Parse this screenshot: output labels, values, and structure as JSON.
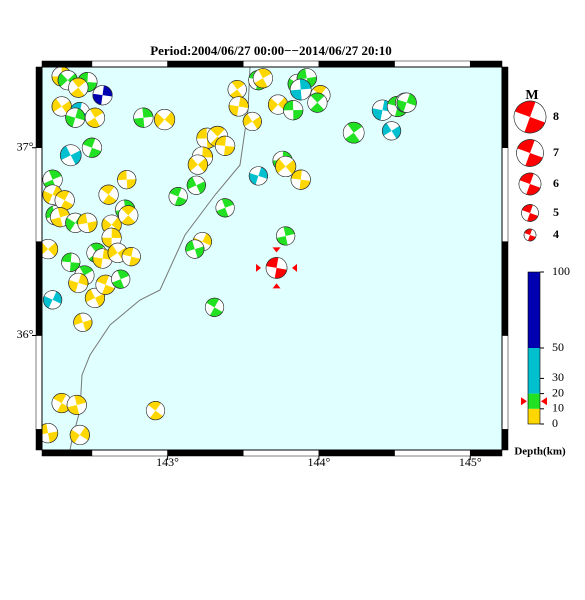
{
  "title": "Period:2004/06/27 00:00−−2014/06/27 20:10",
  "map": {
    "xlim": [
      142.17,
      145.21
    ],
    "ylim": [
      35.39,
      37.43
    ],
    "xticks": [
      {
        "value": 143,
        "label": "143°"
      },
      {
        "value": 144,
        "label": "144°"
      },
      {
        "value": 145,
        "label": "145°"
      }
    ],
    "yticks": [
      {
        "value": 36,
        "label": "36°"
      },
      {
        "value": 37,
        "label": "37°"
      }
    ],
    "background": "#e0ffff"
  },
  "events": [
    [
      142.3,
      37.38,
      5,
      5.5
    ],
    [
      142.34,
      37.36,
      15,
      5.5
    ],
    [
      142.47,
      37.35,
      15,
      5.5
    ],
    [
      142.41,
      37.32,
      5,
      5.5
    ],
    [
      142.57,
      37.28,
      70,
      5.5
    ],
    [
      142.3,
      37.22,
      5,
      5.5
    ],
    [
      142.42,
      37.19,
      35,
      5.5
    ],
    [
      142.52,
      37.16,
      5,
      5.5
    ],
    [
      142.39,
      37.16,
      15,
      5.5
    ],
    [
      142.36,
      36.96,
      45,
      5.8
    ],
    [
      142.5,
      37.0,
      15,
      5.5
    ],
    [
      142.24,
      36.83,
      15,
      5.5
    ],
    [
      142.24,
      36.75,
      5,
      5.5
    ],
    [
      142.26,
      36.64,
      15,
      5.5
    ],
    [
      142.32,
      36.72,
      5,
      5.5
    ],
    [
      142.29,
      36.63,
      5,
      5.5
    ],
    [
      142.39,
      36.6,
      15,
      5.5
    ],
    [
      142.47,
      36.6,
      5,
      5.5
    ],
    [
      142.61,
      36.75,
      5,
      5.5
    ],
    [
      142.72,
      36.67,
      15,
      5.5
    ],
    [
      142.63,
      36.59,
      5,
      5.5
    ],
    [
      142.73,
      36.83,
      5,
      5.3
    ],
    [
      142.74,
      36.64,
      5,
      5.5
    ],
    [
      142.63,
      36.52,
      5,
      5.5
    ],
    [
      142.21,
      36.46,
      5,
      5.5
    ],
    [
      142.36,
      36.39,
      15,
      5.3
    ],
    [
      142.53,
      36.44,
      15,
      5.5
    ],
    [
      142.57,
      36.41,
      5,
      5.5
    ],
    [
      142.67,
      36.44,
      5,
      5.5
    ],
    [
      142.76,
      36.42,
      5,
      5.3
    ],
    [
      142.45,
      36.32,
      15,
      5.5
    ],
    [
      142.41,
      36.28,
      5,
      5.5
    ],
    [
      142.52,
      36.2,
      5,
      5.5
    ],
    [
      142.59,
      36.27,
      5,
      5.5
    ],
    [
      142.69,
      36.3,
      15,
      5.3
    ],
    [
      142.24,
      36.19,
      35,
      5.3
    ],
    [
      142.44,
      36.07,
      5,
      5.3
    ],
    [
      142.3,
      35.64,
      5,
      5.5
    ],
    [
      142.4,
      35.63,
      5,
      5.5
    ],
    [
      142.42,
      35.47,
      5,
      5.5
    ],
    [
      142.21,
      35.48,
      5,
      5.5
    ],
    [
      142.92,
      35.6,
      5,
      5.3
    ],
    [
      142.84,
      37.16,
      15,
      5.5
    ],
    [
      142.98,
      37.15,
      5,
      5.7
    ],
    [
      143.26,
      37.05,
      5,
      5.7
    ],
    [
      143.33,
      37.06,
      5,
      5.7
    ],
    [
      143.23,
      36.95,
      5,
      5.7
    ],
    [
      143.2,
      36.91,
      5,
      5.5
    ],
    [
      143.38,
      37.01,
      5,
      5.5
    ],
    [
      143.46,
      37.31,
      5,
      5.3
    ],
    [
      143.47,
      37.22,
      5,
      5.5
    ],
    [
      143.56,
      37.14,
      5,
      5.3
    ],
    [
      143.6,
      37.36,
      15,
      5.5
    ],
    [
      143.63,
      37.37,
      5,
      5.5
    ],
    [
      143.6,
      36.85,
      35,
      5.3
    ],
    [
      143.19,
      36.8,
      15,
      5.3
    ],
    [
      143.07,
      36.74,
      15,
      5.3
    ],
    [
      143.38,
      36.68,
      15,
      5.3
    ],
    [
      143.23,
      36.5,
      5,
      5.3
    ],
    [
      143.18,
      36.46,
      15,
      5.3
    ],
    [
      143.31,
      36.15,
      15,
      5.3
    ],
    [
      143.78,
      36.53,
      15,
      5.3
    ],
    [
      143.86,
      37.34,
      15,
      5.5
    ],
    [
      143.92,
      37.37,
      15,
      5.5
    ],
    [
      144.01,
      37.28,
      5,
      5.5
    ],
    [
      143.88,
      37.31,
      35,
      5.8
    ],
    [
      143.73,
      37.23,
      5,
      5.5
    ],
    [
      143.83,
      37.2,
      15,
      5.5
    ],
    [
      143.99,
      37.24,
      15,
      5.5
    ],
    [
      143.76,
      36.93,
      15,
      5.5
    ],
    [
      143.78,
      36.9,
      5,
      5.7
    ],
    [
      143.88,
      36.83,
      5,
      5.5
    ],
    [
      144.23,
      37.08,
      15,
      5.8
    ],
    [
      144.42,
      37.2,
      45,
      5.7
    ],
    [
      144.48,
      37.09,
      35,
      5.3
    ],
    [
      144.52,
      37.22,
      15,
      5.7
    ],
    [
      144.57,
      37.24,
      35,
      5.5
    ],
    [
      144.58,
      37.24,
      15,
      5.5
    ]
  ],
  "main_event": {
    "lon": 143.72,
    "lat": 36.36,
    "depth": 15,
    "magnitude": 5.8,
    "color": "#ff0000"
  },
  "magnitude_legend": {
    "title": "M",
    "values": [
      8,
      7,
      6,
      5,
      4
    ],
    "color": "#ff0000"
  },
  "depth_scale": {
    "title": "Depth(km)",
    "range": [
      0,
      100
    ],
    "ticks": [
      0,
      10,
      20,
      30,
      50,
      100
    ],
    "bands": [
      {
        "from": 0,
        "to": 10,
        "color": "#ffd700"
      },
      {
        "from": 10,
        "to": 20,
        "color": "#22e022"
      },
      {
        "from": 20,
        "to": 50,
        "color": "#00c0d0"
      },
      {
        "from": 50,
        "to": 100,
        "color": "#0000b0"
      }
    ]
  }
}
